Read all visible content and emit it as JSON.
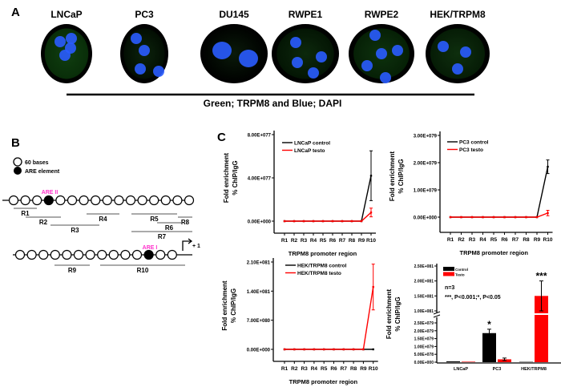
{
  "panel_a": {
    "label": "A",
    "cells": [
      "LNCaP",
      "PC3",
      "DU145",
      "RWPE1",
      "RWPE2",
      "HEK/TRPM8"
    ],
    "caption": "Green; TRPM8 and Blue; DAPI",
    "stain_colors": {
      "trpm8": "#22b322",
      "dapi": "#2a5cff"
    }
  },
  "panel_b": {
    "label": "B",
    "legend": {
      "open": "60 bases",
      "filled": "ARE element"
    },
    "are_labels": [
      "ARE II",
      "ARE I"
    ],
    "are_color": "#ff33cc",
    "regions_row1": [
      "R1",
      "R2",
      "R3",
      "R4",
      "R5",
      "R6",
      "R7",
      "R8"
    ],
    "regions_row2": [
      "R9",
      "R10"
    ],
    "tss_label": "+ 1"
  },
  "panel_c": {
    "label": "C"
  },
  "chart_data": [
    {
      "type": "line",
      "xlabel": "TRPM8 promoter region",
      "ylabel": [
        "Fold enrichment",
        "% ChIP/IgG"
      ],
      "categories": [
        "R1",
        "R2",
        "R3",
        "R4",
        "R5",
        "R6",
        "R7",
        "R8",
        "R9",
        "R10"
      ],
      "yticks": [
        "0.00E+000",
        "4.00E+077",
        "8.00E+077"
      ],
      "ylim": [
        0,
        8e+77
      ],
      "series": [
        {
          "name": "LNCaP control",
          "color": "#000000",
          "values": [
            0,
            0,
            0,
            0,
            0,
            0,
            0,
            0,
            0,
            4.2e+77
          ],
          "errors": [
            0,
            0,
            0,
            0,
            0,
            0,
            0,
            0,
            0,
            2.3e+77
          ]
        },
        {
          "name": "LNCaP testo",
          "color": "#ff0000",
          "values": [
            0,
            0,
            0,
            0,
            0,
            0,
            0,
            0,
            0,
            8e+76
          ],
          "errors": [
            0,
            0,
            0,
            0,
            0,
            0,
            0,
            0,
            0,
            4e+76
          ]
        }
      ],
      "legend": "top-left"
    },
    {
      "type": "line",
      "xlabel": "TRPM8 promoter region",
      "ylabel": [
        "Fold enrichment",
        "% ChIP/IgG"
      ],
      "categories": [
        "R1",
        "R2",
        "R3",
        "R4",
        "R5",
        "R6",
        "R7",
        "R8",
        "R9",
        "R10"
      ],
      "yticks": [
        "0.00E+000",
        "1.00E+079",
        "2.00E+079",
        "3.00E+079"
      ],
      "ylim": [
        0,
        3e+79
      ],
      "series": [
        {
          "name": "PC3 control",
          "color": "#000000",
          "values": [
            0,
            0,
            0,
            0,
            0,
            0,
            0,
            0,
            0,
            1.85e+79
          ],
          "errors": [
            0,
            0,
            0,
            0,
            0,
            0,
            0,
            0,
            0,
            2.5e+78
          ]
        },
        {
          "name": "PC3 testo",
          "color": "#ff0000",
          "values": [
            0,
            0,
            0,
            0,
            0,
            0,
            0,
            0,
            0,
            1.5e+78
          ],
          "errors": [
            0,
            0,
            0,
            0,
            0,
            0,
            0,
            0,
            0,
            1e+78
          ]
        }
      ],
      "legend": "top-left"
    },
    {
      "type": "line",
      "xlabel": "TRPM8 promoter region",
      "ylabel": [
        "Fold enrichment",
        "% ChIP/IgG"
      ],
      "categories": [
        "R1",
        "R2",
        "R3",
        "R4",
        "R5",
        "R6",
        "R7",
        "R8",
        "R9",
        "R10"
      ],
      "yticks": [
        "0.00E+000",
        "7.00E+080",
        "1.40E+081",
        "2.10E+081"
      ],
      "ylim": [
        0,
        2.1e+81
      ],
      "series": [
        {
          "name": "HEK/TRPM8 control",
          "color": "#000000",
          "values": [
            0,
            0,
            0,
            0,
            0,
            0,
            0,
            0,
            0,
            0
          ],
          "errors": [
            0,
            0,
            0,
            0,
            0,
            0,
            0,
            0,
            0,
            0
          ]
        },
        {
          "name": "HEK/TRPM8 testo",
          "color": "#ff0000",
          "values": [
            0,
            0,
            0,
            0,
            0,
            0,
            0,
            0,
            0,
            1.5e+81
          ],
          "errors": [
            0,
            0,
            0,
            0,
            0,
            0,
            0,
            0,
            0,
            5.5e+80
          ]
        }
      ],
      "legend": "top-left"
    },
    {
      "type": "bar",
      "ylabel": [
        "Fold enrichment",
        "% ChIP/IgG"
      ],
      "categories": [
        "LNCaP",
        "PC3",
        "HEK/TRPM8"
      ],
      "y_axis_break": [
        2.5e+79,
        1e+81
      ],
      "yticks_lower": [
        "0.00E+000",
        "5.00E+078",
        "1.00E+079",
        "1.50E+079",
        "2.00E+079",
        "2.50E+079"
      ],
      "yticks_upper": [
        "1.00E+081",
        "1.50E+081",
        "2.00E+081",
        "2.50E+081"
      ],
      "series": [
        {
          "name": "Control",
          "color": "#000000",
          "values": [
            5e+77,
            1.85e+79,
            2e+77
          ],
          "errors": [
            0,
            2.5e+78,
            0
          ],
          "significance": [
            "",
            "*",
            ""
          ]
        },
        {
          "name": "Testo",
          "color": "#ff0000",
          "values": [
            3e+77,
            1.8e+78,
            1.5e+81
          ],
          "errors": [
            0,
            8e+77,
            5e+80
          ],
          "significance": [
            "",
            "",
            "***"
          ]
        }
      ],
      "annotations": [
        "n=3",
        "***, P<0.001;*, P<0.05"
      ],
      "legend": "top-left"
    }
  ]
}
